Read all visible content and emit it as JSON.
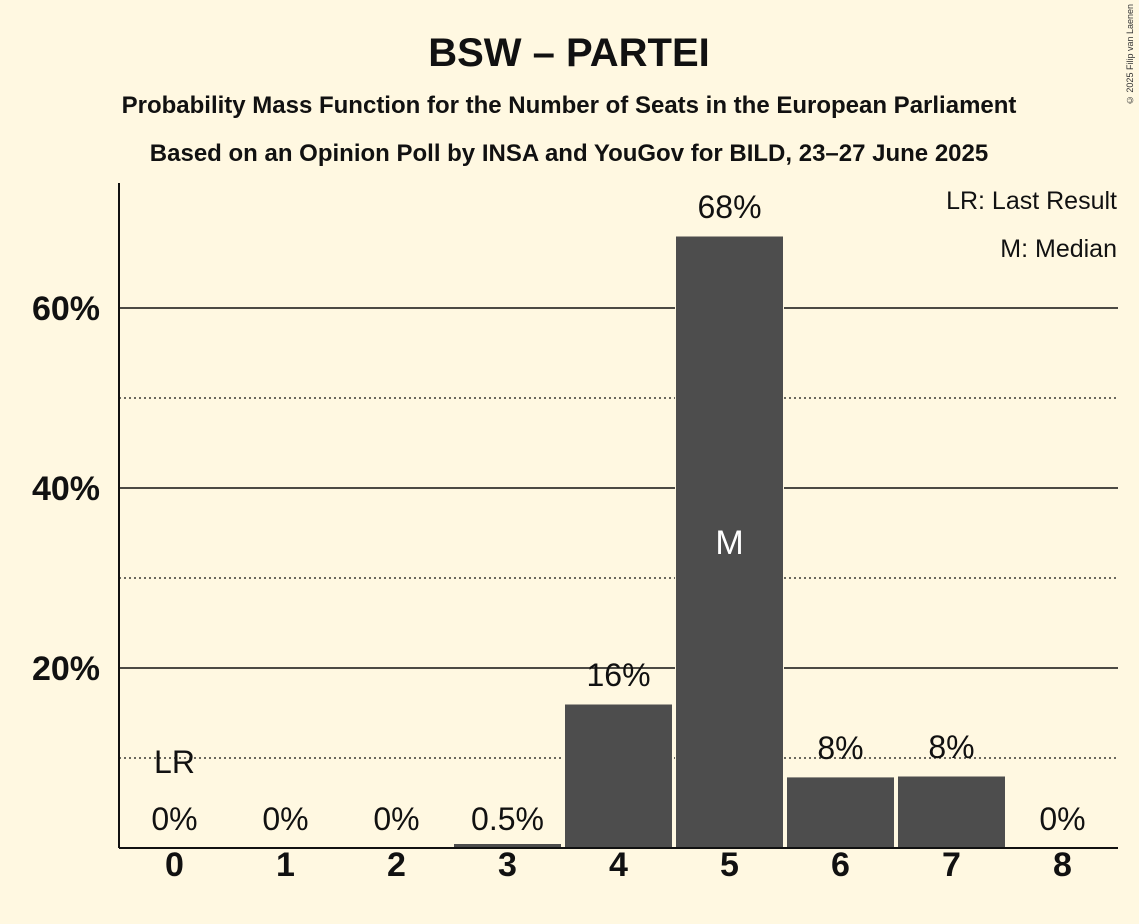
{
  "copyright": "© 2025 Filip van Laenen",
  "chart_data": {
    "type": "bar",
    "title": "BSW – PARTEI",
    "subtitle": "Probability Mass Function for the Number of Seats in the European Parliament",
    "subtitle2": "Based on an Opinion Poll by INSA and YouGov for BILD, 23–27 June 2025",
    "legend": [
      "LR: Last Result",
      "M: Median"
    ],
    "legend_position": "top-right",
    "categories": [
      "0",
      "1",
      "2",
      "3",
      "4",
      "5",
      "6",
      "7",
      "8"
    ],
    "values": [
      0,
      0,
      0,
      0.5,
      16,
      68,
      7.9,
      8.0,
      0
    ],
    "value_labels": [
      "0%",
      "0%",
      "0%",
      "0.5%",
      "16%",
      "68%",
      "8%",
      "8%",
      "0%"
    ],
    "median_index": 5,
    "median_label": "M",
    "last_result_index": 0,
    "last_result_label": "LR",
    "ylim": [
      0,
      72
    ],
    "yticks": [
      20,
      40,
      60
    ],
    "ytick_labels": [
      "20%",
      "40%",
      "60%"
    ],
    "minor_gridlines": [
      10,
      30,
      50
    ],
    "bar_color": "#4D4D4D",
    "background_color": "#FFF8E1"
  }
}
